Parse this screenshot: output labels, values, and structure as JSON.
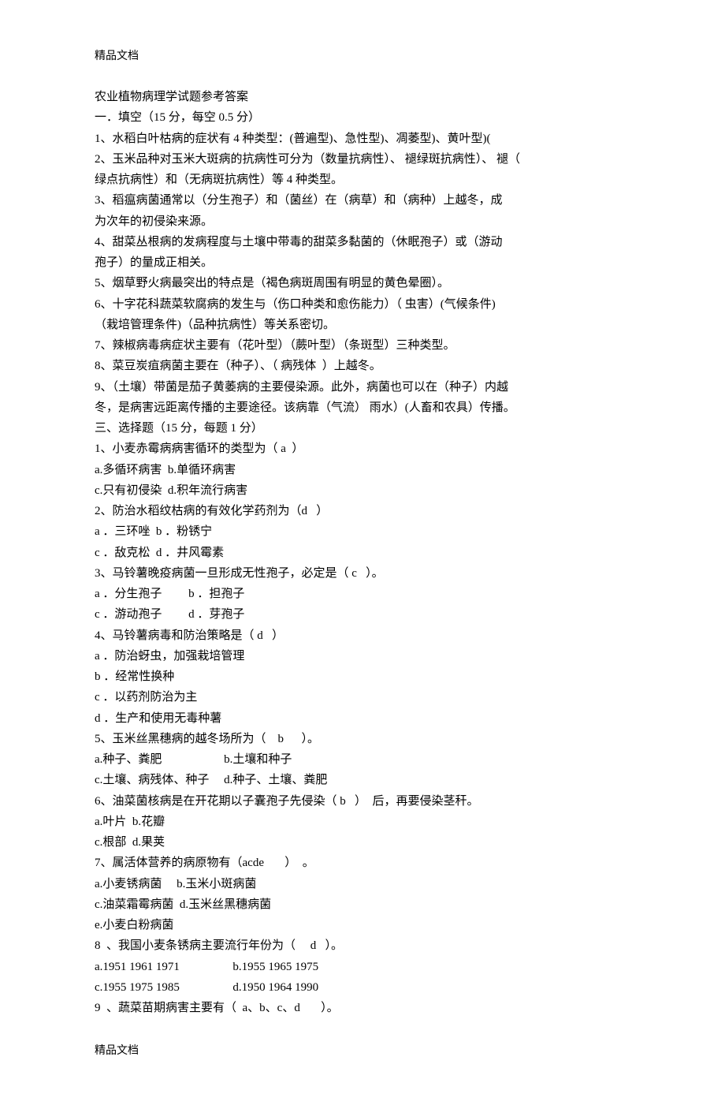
{
  "header": "精品文档",
  "footer": "精品文档",
  "lines": [
    "农业植物病理学试题参考答案",
    "一．填空（15 分，每空 0.5 分）",
    "1、水稻白叶枯病的症状有 4 种类型：(普遍型)、急性型)、凋萎型)、黄叶型)(",
    "2、玉米品种对玉米大斑病的抗病性可分为（数量抗病性）、 褪绿斑抗病性）、 褪（",
    "绿点抗病性）和（无病斑抗病性）等 4 种类型。",
    "3、稻瘟病菌通常以（分生孢子）和（菌丝）在（病草）和（病种）上越冬，成",
    "为次年的初侵染来源。",
    "4、甜菜丛根病的发病程度与土壤中带毒的甜菜多黏菌的（休眠孢子）或（游动",
    "孢子）的量成正相关。",
    "5、烟草野火病最突出的特点是（褐色病斑周围有明显的黄色晕圈）。",
    "6、十字花科蔬菜软腐病的发生与（伤口种类和愈伤能力）（ 虫害）(气候条件)",
    "（栽培管理条件)（品种抗病性）等关系密切。",
    "7、辣椒病毒病症状主要有（花叶型）（蕨叶型）（条斑型）三种类型。",
    "8、菜豆炭疽病菌主要在（种子）、（ 病残体  ）上越冬。",
    "9、（土壤）带菌是茄子黄萎病的主要侵染源。此外，病菌也可以在（种子）内越",
    "冬，是病害远距离传播的主要途径。该病靠（气流） 雨水）(人畜和农具）传播。",
    "三、选择题（15 分，每题 1 分）",
    "1、小麦赤霉病病害循环的类型为（ a  ）",
    "a.多循环病害  b.单循环病害",
    "c.只有初侵染  d.积年流行病害",
    "2、防治水稻纹枯病的有效化学药剂为（d   ）",
    "a ．三环唑  b ．粉锈宁",
    "c ．敌克松  d ．井风霉素",
    "3、马铃薯晚疫病菌一旦形成无性孢子，必定是（ c   ）。",
    "a ．分生孢子         b ．担孢子",
    "c ．游动孢子         d ．芽孢子",
    "4、马铃薯病毒和防治策略是（ d   ）",
    "a ．防治蚜虫，加强栽培管理",
    "b ．经常性换种",
    "c ．以药剂防治为主",
    "d ．生产和使用无毒种薯",
    "5、玉米丝黑穗病的越冬场所为（    b      ）。",
    "a.种子、粪肥                     b.土壤和种子",
    "c.土壤、病残体、种子     d.种子、土壤、粪肥",
    "6、油菜菌核病是在开花期以子囊孢子先侵染（ b   ）  后，再要侵染茎秆。",
    "a.叶片  b.花瓣",
    "c.根部  d.果荚",
    "7、属活体营养的病原物有（acde       ）  。",
    "a.小麦锈病菌     b.玉米小斑病菌",
    "c.油菜霜霉病菌  d.玉米丝黑穗病菌",
    "e.小麦白粉病菌",
    "8  、我国小麦条锈病主要流行年份为（     d   ）。",
    "a.1951 1961 1971                  b.1955 1965 1975",
    "c.1955 1975 1985                  d.1950 1964 1990",
    "9  、蔬菜苗期病害主要有（  a、b、c、d       ）。"
  ]
}
